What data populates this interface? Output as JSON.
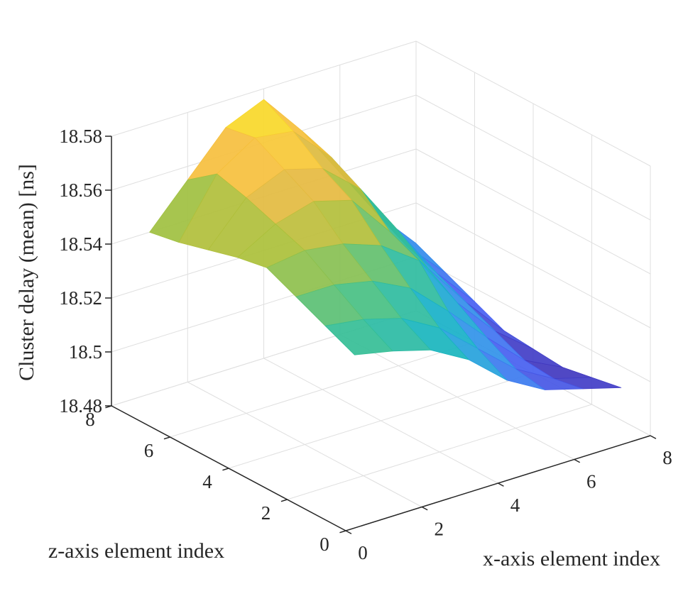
{
  "chart_data": {
    "type": "surface3d",
    "title": "",
    "xlabel": "x-axis element index",
    "ylabel": "z-axis element index",
    "zlabel": "Cluster delay (mean) [ns]",
    "xlim": [
      0,
      8
    ],
    "ylim": [
      0,
      8
    ],
    "zlim": [
      18.48,
      18.58
    ],
    "x_ticks": [
      "0",
      "2",
      "4",
      "6",
      "8"
    ],
    "y_ticks": [
      "0",
      "2",
      "4",
      "6",
      "8"
    ],
    "z_ticks": [
      "18.48",
      "18.5",
      "18.52",
      "18.54",
      "18.56",
      "18.58"
    ],
    "grid": true,
    "colormap": "parula",
    "colormap_stops": [
      "#3e26a8",
      "#4863f5",
      "#2d9ae7",
      "#15b4c4",
      "#3bc08d",
      "#a7c03a",
      "#f5b942",
      "#fae61e"
    ],
    "x": [
      1,
      2,
      3,
      4,
      5,
      6,
      7,
      8
    ],
    "y": [
      1,
      2,
      3,
      4,
      5,
      6,
      7,
      8
    ],
    "z": [
      [
        18.535,
        18.532,
        18.528,
        18.52,
        18.508,
        18.5,
        18.496,
        18.492
      ],
      [
        18.54,
        18.538,
        18.534,
        18.526,
        18.514,
        18.502,
        18.494,
        18.49
      ],
      [
        18.545,
        18.545,
        18.542,
        18.535,
        18.522,
        18.508,
        18.495,
        18.488
      ],
      [
        18.55,
        18.552,
        18.55,
        18.545,
        18.535,
        18.515,
        18.5,
        18.489
      ],
      [
        18.548,
        18.556,
        18.56,
        18.556,
        18.54,
        18.522,
        18.505,
        18.49
      ],
      [
        18.545,
        18.56,
        18.566,
        18.562,
        18.55,
        18.53,
        18.51,
        18.495
      ],
      [
        18.542,
        18.563,
        18.572,
        18.57,
        18.556,
        18.536,
        18.514,
        18.5
      ],
      [
        18.54,
        18.555,
        18.57,
        18.576,
        18.56,
        18.54,
        18.52,
        18.505
      ]
    ]
  }
}
